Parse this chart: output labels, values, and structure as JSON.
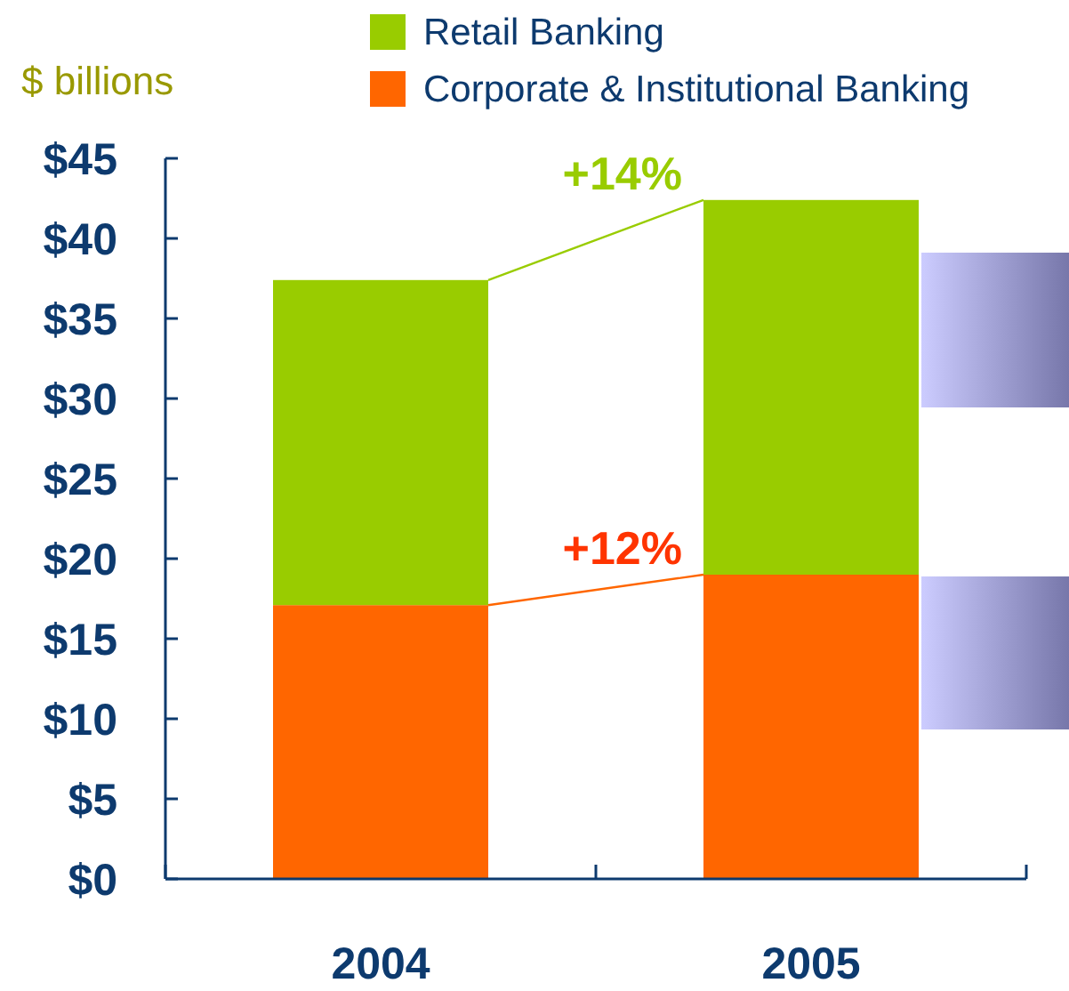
{
  "chart_data": {
    "type": "bar",
    "stacked": true,
    "ylabel": "$ billions",
    "categories": [
      "2004",
      "2005"
    ],
    "series": [
      {
        "name": "Corporate & Institutional Banking",
        "color": "#ff6600",
        "values": [
          17.1,
          19.0
        ]
      },
      {
        "name": "Retail Banking",
        "color": "#99cc00",
        "values": [
          20.3,
          23.4
        ]
      }
    ],
    "ylim": [
      0,
      45
    ],
    "yticks": [
      {
        "value": 0,
        "label": "$0"
      },
      {
        "value": 5,
        "label": "$5"
      },
      {
        "value": 10,
        "label": "$10"
      },
      {
        "value": 15,
        "label": "$15"
      },
      {
        "value": 20,
        "label": "$20"
      },
      {
        "value": 25,
        "label": "$25"
      },
      {
        "value": 30,
        "label": "$30"
      },
      {
        "value": 35,
        "label": "$35"
      },
      {
        "value": 40,
        "label": "$40"
      },
      {
        "value": 45,
        "label": "$45"
      }
    ],
    "annotations": [
      {
        "text": "+14%",
        "x": "2005",
        "y": 42.4
      },
      {
        "text": "+12%",
        "x": "2005",
        "y": 19.0
      }
    ],
    "legend": "top",
    "grid": false
  }
}
